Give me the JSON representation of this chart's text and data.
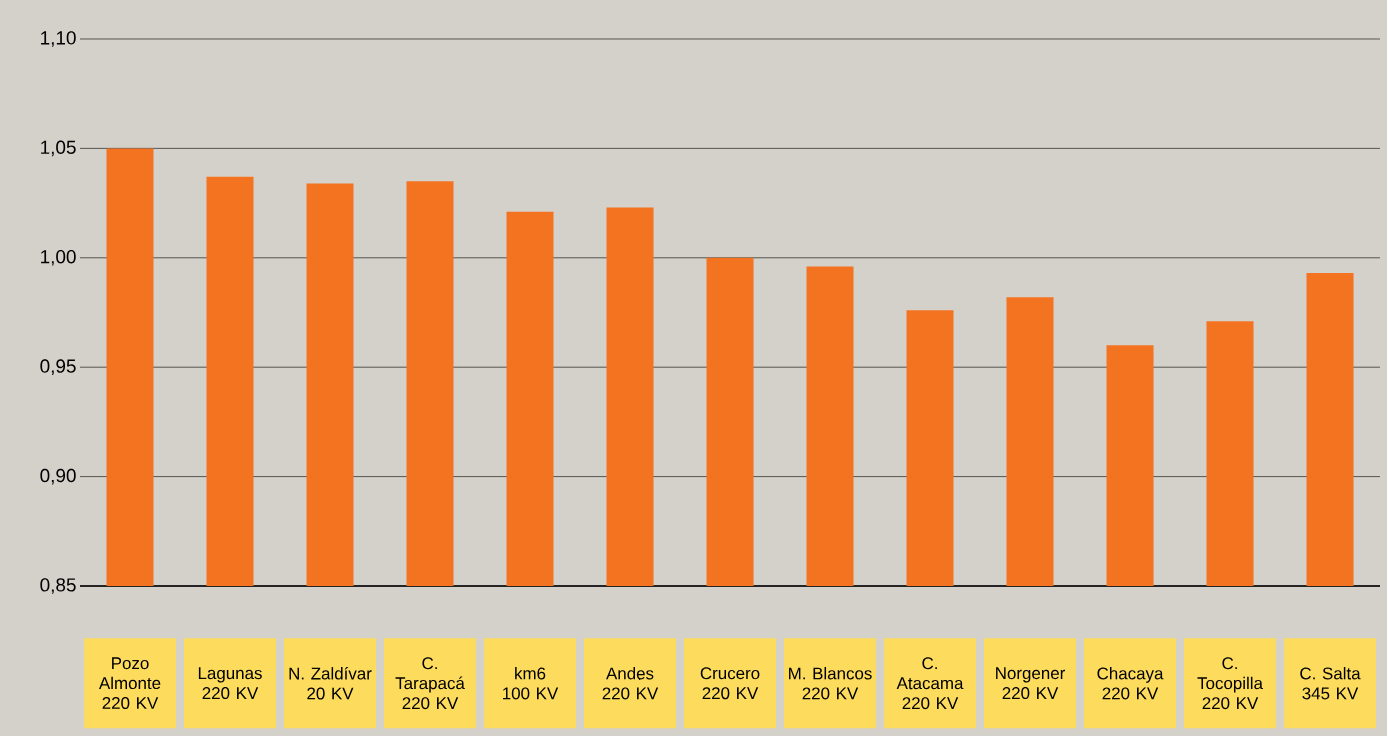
{
  "chart_data": {
    "type": "bar",
    "categories": [
      "Pozo Almonte 220 KV",
      "Lagunas 220 KV",
      "N. Zaldívar 20 KV",
      "C. Tarapacá 220 KV",
      "km6 100 KV",
      "Andes 220 KV",
      "Crucero 220 KV",
      "M. Blancos 220 KV",
      "C. Atacama 220 KV",
      "Norgener 220 KV",
      "Chacaya 220 KV",
      "C. Tocopilla 220 KV",
      "C. Salta 345 KV"
    ],
    "values": [
      1.05,
      1.037,
      1.034,
      1.035,
      1.021,
      1.023,
      1.0,
      0.996,
      0.976,
      0.982,
      0.96,
      0.971,
      0.993
    ],
    "color": "#f47320",
    "ylim": [
      0.85,
      1.1
    ],
    "yticks": [
      {
        "value": 0.85,
        "label": "0,85"
      },
      {
        "value": 0.9,
        "label": "0,90"
      },
      {
        "value": 0.95,
        "label": "0,95"
      },
      {
        "value": 1.0,
        "label": "1,00"
      },
      {
        "value": 1.05,
        "label": "1,05"
      },
      {
        "value": 1.1,
        "label": "1,10"
      }
    ],
    "grid": "y"
  }
}
